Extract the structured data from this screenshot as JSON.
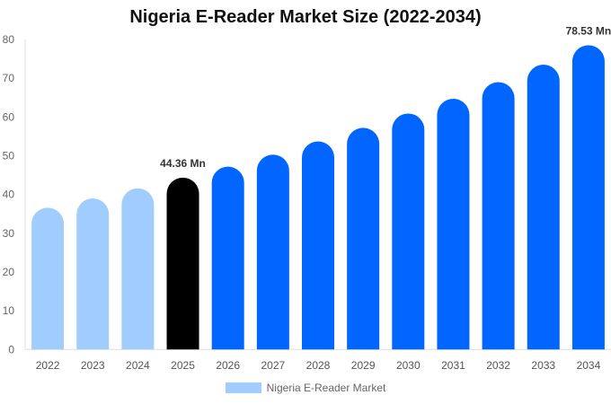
{
  "chart_data": {
    "type": "bar",
    "title": "Nigeria E-Reader Market Size (2022-2034)",
    "categories": [
      "2022",
      "2023",
      "2024",
      "2025",
      "2026",
      "2027",
      "2028",
      "2029",
      "2030",
      "2031",
      "2032",
      "2033",
      "2034"
    ],
    "series": [
      {
        "name": "Nigeria E-Reader Market",
        "values": [
          36.6,
          39.0,
          41.6,
          44.36,
          47.2,
          50.3,
          53.7,
          57.2,
          60.9,
          64.7,
          69.0,
          73.5,
          78.53
        ]
      }
    ],
    "bar_colors": [
      "#a0cdfd",
      "#a0cdfd",
      "#a0cdfd",
      "#000000",
      "#0066ff",
      "#0066ff",
      "#0066ff",
      "#0066ff",
      "#0066ff",
      "#0066ff",
      "#0066ff",
      "#0066ff",
      "#0066ff"
    ],
    "data_labels": [
      {
        "index": 3,
        "text": "44.36 Mn"
      },
      {
        "index": 12,
        "text": "78.53 Mn"
      }
    ],
    "ylim": [
      0,
      80
    ],
    "yticks": [
      0,
      10,
      20,
      30,
      40,
      50,
      60,
      70,
      80
    ],
    "grid": false,
    "legend": {
      "position": "bottom",
      "color": "#a0cdfd"
    },
    "xlabel": "",
    "ylabel": ""
  }
}
